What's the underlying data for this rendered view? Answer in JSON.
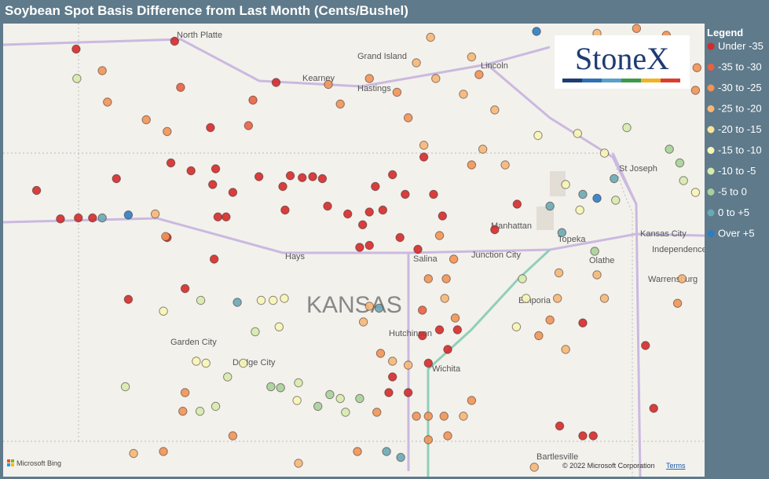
{
  "title": "Soybean Spot Basis Difference from Last Month (Cents/Bushel)",
  "legend": {
    "title": "Legend",
    "items": [
      {
        "label": "Under -35",
        "color": "#d42a2a"
      },
      {
        "label": "-35 to -30",
        "color": "#ea6040"
      },
      {
        "label": "-30 to -25",
        "color": "#f19355"
      },
      {
        "label": "-25 to -20",
        "color": "#f6b777"
      },
      {
        "label": "-20 to -15",
        "color": "#f9e49c"
      },
      {
        "label": "-15 to -10",
        "color": "#f6f6b6"
      },
      {
        "label": "-10 to -5",
        "color": "#d6ebad"
      },
      {
        "label": "-5 to 0",
        "color": "#a6d29a"
      },
      {
        "label": "0 to +5",
        "color": "#6aa8b5"
      },
      {
        "label": "Over +5",
        "color": "#2e7cc4"
      }
    ]
  },
  "logo": "StoneX",
  "places": [
    "North Platte",
    "Grand Island",
    "Kearney",
    "Hastings",
    "Lincoln",
    "St Joseph",
    "Manhattan",
    "Topeka",
    "Kansas City",
    "Independence",
    "Junction City",
    "Hays",
    "Salina",
    "Olathe",
    "Emporia",
    "Warrensburg",
    "KANSAS",
    "Hutchinson",
    "Garden City",
    "Dodge City",
    "Wichita",
    "Bartlesville"
  ],
  "attribution": {
    "provider": "Microsoft Bing",
    "copyright": "© 2022 Microsoft Corporation",
    "terms": "Terms"
  },
  "stations": [
    [
      -102.11,
      40.98,
      0
    ],
    [
      -100.79,
      41.06,
      0
    ],
    [
      -102.64,
      39.54,
      0
    ],
    [
      -102.32,
      39.25,
      0
    ],
    [
      -102.08,
      39.26,
      0
    ],
    [
      -101.89,
      39.26,
      0
    ],
    [
      -101.57,
      39.66,
      0
    ],
    [
      -100.84,
      39.82,
      0
    ],
    [
      -100.57,
      39.74,
      0
    ],
    [
      -100.28,
      39.6,
      0
    ],
    [
      -100.24,
      39.76,
      0
    ],
    [
      -100.21,
      39.27,
      0
    ],
    [
      -100.1,
      39.27,
      0
    ],
    [
      -100.89,
      39.06,
      0
    ],
    [
      -100.26,
      38.84,
      0
    ],
    [
      -101.41,
      38.43,
      0
    ],
    [
      -100.65,
      38.54,
      0
    ],
    [
      -100.01,
      39.52,
      0
    ],
    [
      -99.66,
      39.68,
      0
    ],
    [
      -99.34,
      39.58,
      0
    ],
    [
      -99.24,
      39.69,
      0
    ],
    [
      -99.08,
      39.67,
      0
    ],
    [
      -98.94,
      39.68,
      0
    ],
    [
      -98.81,
      39.66,
      0
    ],
    [
      -99.31,
      39.34,
      0
    ],
    [
      -98.74,
      39.38,
      0
    ],
    [
      -98.47,
      39.3,
      0
    ],
    [
      -98.27,
      39.19,
      0
    ],
    [
      -98.18,
      39.32,
      0
    ],
    [
      -98.0,
      39.34,
      0
    ],
    [
      -98.1,
      39.58,
      0
    ],
    [
      -97.87,
      39.7,
      0
    ],
    [
      -97.7,
      39.5,
      0
    ],
    [
      -97.45,
      39.88,
      0
    ],
    [
      -97.32,
      39.5,
      0
    ],
    [
      -97.2,
      39.28,
      0
    ],
    [
      -97.77,
      39.06,
      0
    ],
    [
      -98.31,
      38.96,
      0
    ],
    [
      -98.18,
      38.98,
      0
    ],
    [
      -97.53,
      38.94,
      0
    ],
    [
      -97.24,
      38.12,
      0
    ],
    [
      -97.0,
      38.12,
      0
    ],
    [
      -97.87,
      37.64,
      0
    ],
    [
      -97.92,
      37.48,
      0
    ],
    [
      -97.66,
      37.48,
      0
    ],
    [
      -96.5,
      39.14,
      0
    ],
    [
      -96.2,
      39.4,
      0
    ],
    [
      -95.32,
      38.19,
      0
    ],
    [
      -94.48,
      37.96,
      0
    ],
    [
      -94.37,
      37.32,
      0
    ],
    [
      -95.63,
      37.14,
      0
    ],
    [
      -95.32,
      37.04,
      0
    ],
    [
      -95.18,
      37.04,
      0
    ],
    [
      -97.47,
      38.06,
      0
    ],
    [
      -97.39,
      37.78,
      0
    ],
    [
      -97.13,
      37.92,
      0
    ],
    [
      -99.43,
      40.64,
      0
    ],
    [
      -100.31,
      40.18,
      0
    ],
    [
      -99.74,
      40.46,
      1
    ],
    [
      -99.8,
      40.2,
      1
    ],
    [
      -100.71,
      40.59,
      1
    ],
    [
      -97.47,
      38.32,
      1
    ],
    [
      -101.76,
      40.76,
      2
    ],
    [
      -101.69,
      40.44,
      2
    ],
    [
      -101.17,
      40.26,
      2
    ],
    [
      -100.89,
      40.14,
      2
    ],
    [
      -101.05,
      39.3,
      3
    ],
    [
      -100.91,
      39.07,
      2
    ],
    [
      -98.73,
      40.62,
      2
    ],
    [
      -98.57,
      40.42,
      2
    ],
    [
      -98.18,
      40.68,
      2
    ],
    [
      -97.81,
      40.54,
      2
    ],
    [
      -97.55,
      40.84,
      3
    ],
    [
      -97.36,
      41.1,
      3
    ],
    [
      -97.29,
      40.68,
      3
    ],
    [
      -96.92,
      40.52,
      3
    ],
    [
      -96.81,
      40.9,
      3
    ],
    [
      -96.71,
      40.72,
      2
    ],
    [
      -96.5,
      40.36,
      3
    ],
    [
      -97.66,
      40.28,
      2
    ],
    [
      -97.45,
      40.0,
      3
    ],
    [
      -96.81,
      39.8,
      2
    ],
    [
      -96.66,
      39.96,
      3
    ],
    [
      -96.36,
      39.8,
      3
    ],
    [
      -97.24,
      39.08,
      2
    ],
    [
      -97.05,
      38.84,
      2
    ],
    [
      -97.15,
      38.64,
      2
    ],
    [
      -97.39,
      38.64,
      2
    ],
    [
      -97.17,
      38.44,
      3
    ],
    [
      -97.03,
      38.24,
      2
    ],
    [
      -98.18,
      38.36,
      3
    ],
    [
      -98.26,
      38.2,
      3
    ],
    [
      -98.03,
      37.88,
      2
    ],
    [
      -97.87,
      37.8,
      3
    ],
    [
      -97.66,
      37.76,
      3
    ],
    [
      -98.08,
      37.28,
      2
    ],
    [
      -97.55,
      37.24,
      2
    ],
    [
      -97.39,
      37.24,
      2
    ],
    [
      -97.18,
      37.24,
      2
    ],
    [
      -96.92,
      37.24,
      3
    ],
    [
      -96.81,
      37.4,
      2
    ],
    [
      -97.13,
      37.04,
      2
    ],
    [
      -97.39,
      37.0,
      2
    ],
    [
      -98.34,
      36.88,
      2
    ],
    [
      -95.66,
      38.44,
      3
    ],
    [
      -95.64,
      38.7,
      3
    ],
    [
      -95.13,
      38.68,
      3
    ],
    [
      -95.03,
      38.44,
      3
    ],
    [
      -95.76,
      38.22,
      2
    ],
    [
      -95.91,
      38.06,
      2
    ],
    [
      -95.55,
      37.92,
      3
    ],
    [
      -95.97,
      36.72,
      3
    ],
    [
      -100.65,
      37.48,
      2
    ],
    [
      -100.68,
      37.29,
      2
    ],
    [
      -101.34,
      36.86,
      3
    ],
    [
      -100.94,
      36.88,
      2
    ],
    [
      -100.01,
      37.04,
      2
    ],
    [
      -99.13,
      36.76,
      3
    ],
    [
      -95.13,
      41.14,
      3
    ],
    [
      -94.6,
      41.19,
      2
    ],
    [
      -94.2,
      41.12,
      2
    ],
    [
      -93.79,
      40.79,
      2
    ],
    [
      -93.81,
      40.56,
      2
    ],
    [
      -93.99,
      38.64,
      3
    ],
    [
      -94.05,
      38.39,
      2
    ],
    [
      -102.1,
      40.68,
      6
    ],
    [
      -100.44,
      38.42,
      6
    ],
    [
      -100.94,
      38.31,
      5
    ],
    [
      -99.63,
      38.42,
      5
    ],
    [
      -99.47,
      38.42,
      5
    ],
    [
      -99.32,
      38.44,
      5
    ],
    [
      -99.39,
      38.15,
      5
    ],
    [
      -99.71,
      38.1,
      6
    ],
    [
      -100.5,
      37.8,
      5
    ],
    [
      -100.37,
      37.78,
      5
    ],
    [
      -99.87,
      37.78,
      5
    ],
    [
      -100.08,
      37.64,
      6
    ],
    [
      -99.5,
      37.54,
      7
    ],
    [
      -99.37,
      37.53,
      7
    ],
    [
      -99.13,
      37.58,
      6
    ],
    [
      -101.45,
      37.54,
      6
    ],
    [
      -100.24,
      37.34,
      6
    ],
    [
      -100.45,
      37.29,
      6
    ],
    [
      -99.15,
      37.4,
      5
    ],
    [
      -98.71,
      37.46,
      7
    ],
    [
      -98.87,
      37.34,
      7
    ],
    [
      -98.31,
      37.42,
      7
    ],
    [
      -98.57,
      37.42,
      6
    ],
    [
      -98.5,
      37.28,
      6
    ],
    [
      -95.39,
      40.12,
      5
    ],
    [
      -95.03,
      39.92,
      5
    ],
    [
      -94.73,
      40.18,
      6
    ],
    [
      -94.16,
      39.96,
      7
    ],
    [
      -94.02,
      39.82,
      7
    ],
    [
      -93.97,
      39.64,
      6
    ],
    [
      -93.81,
      39.52,
      5
    ],
    [
      -95.55,
      39.6,
      5
    ],
    [
      -95.36,
      39.34,
      5
    ],
    [
      -94.88,
      39.44,
      6
    ],
    [
      -95.16,
      38.92,
      7
    ],
    [
      -96.13,
      38.64,
      6
    ],
    [
      -96.08,
      38.44,
      5
    ],
    [
      -96.21,
      38.15,
      5
    ],
    [
      -95.92,
      40.1,
      5
    ],
    [
      -95.94,
      41.16,
      9
    ],
    [
      -99.95,
      38.4,
      8
    ],
    [
      -98.05,
      38.34,
      8
    ],
    [
      -95.32,
      39.5,
      8
    ],
    [
      -95.13,
      39.46,
      9
    ],
    [
      -94.9,
      39.66,
      8
    ],
    [
      -95.76,
      39.38,
      8
    ],
    [
      -95.6,
      39.11,
      8
    ],
    [
      -97.95,
      36.88,
      8
    ],
    [
      -97.76,
      36.82,
      8
    ],
    [
      -101.76,
      39.26,
      8
    ],
    [
      -101.41,
      39.29,
      9
    ]
  ]
}
